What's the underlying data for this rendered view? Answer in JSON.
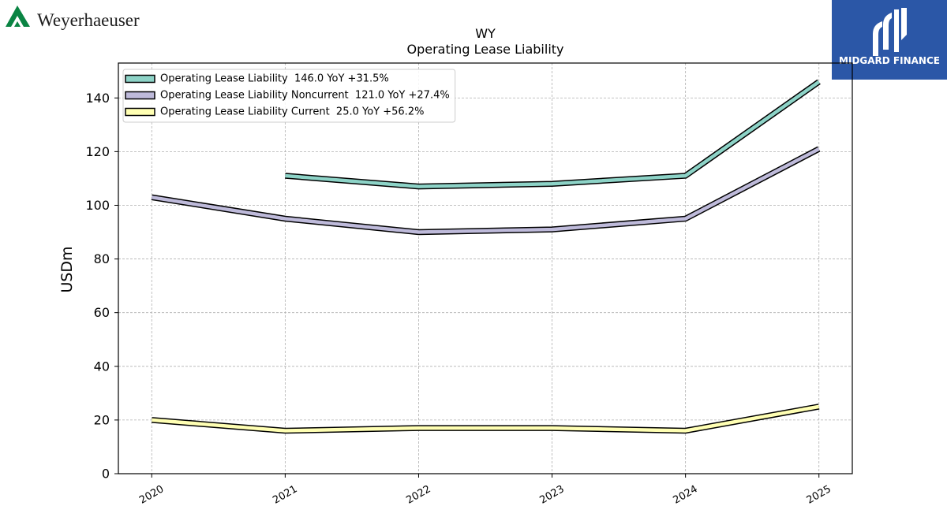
{
  "header": {
    "company_logo_text": "Weyerhaeuser",
    "company_logo_color": "#0a8443",
    "company_text_color": "#1e1e1e",
    "brand_logo_text": "MIDGARD FINANCE",
    "brand_color": "#2b57a7"
  },
  "chart_data": {
    "type": "line",
    "title": "WY",
    "subtitle": "Operating Lease Liability",
    "ylabel": "USDm",
    "x": [
      2020,
      2021,
      2022,
      2023,
      2024,
      2025
    ],
    "x_tick_labels": [
      "2020",
      "2021",
      "2022",
      "2023",
      "2024",
      "2025"
    ],
    "xlim": [
      2019.75,
      2025.25
    ],
    "ylim": [
      0,
      153
    ],
    "y_ticks": [
      0,
      20,
      40,
      60,
      80,
      100,
      120,
      140
    ],
    "grid": true,
    "legend_position": "top-left",
    "series": [
      {
        "name": "Operating Lease Liability  146.0 YoY +31.5%",
        "color": "#8dd3c7",
        "values": [
          null,
          111,
          107,
          108,
          111,
          146
        ]
      },
      {
        "name": "Operating Lease Liability Noncurrent  121.0 YoY +27.4%",
        "color": "#bebada",
        "values": [
          103,
          95,
          90,
          91,
          95,
          121
        ]
      },
      {
        "name": "Operating Lease Liability Current  25.0 YoY +56.2%",
        "color": "#ffffb3",
        "values": [
          20,
          16,
          17,
          17,
          16,
          25
        ]
      }
    ]
  }
}
